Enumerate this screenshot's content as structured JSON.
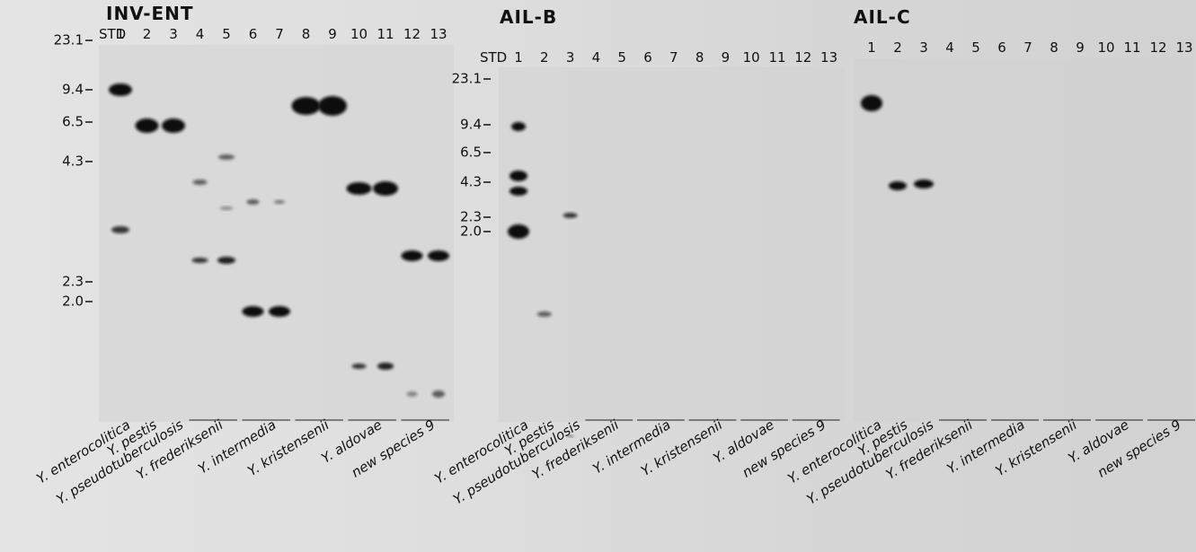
{
  "panels": [
    {
      "title": "INV-ENT",
      "std_label": "STD",
      "lanes": [
        "1",
        "2",
        "3",
        "4",
        "5",
        "6",
        "7",
        "8",
        "9",
        "10",
        "11",
        "12",
        "13"
      ],
      "size_markers": [
        "23.1",
        "9.4",
        "6.5",
        "4.3",
        "2.3",
        "2.0"
      ],
      "species": [
        "Y. enterocolitica",
        "Y. pestis",
        "Y. pseudotuberculosis",
        "Y. frederiksenii",
        "Y. intermedia",
        "Y. kristensenii",
        "Y. aldovae",
        "new species 9"
      ]
    },
    {
      "title": "AIL-B",
      "std_label": "STD",
      "lanes": [
        "1",
        "2",
        "3",
        "4",
        "5",
        "6",
        "7",
        "8",
        "9",
        "10",
        "11",
        "12",
        "13"
      ],
      "size_markers": [
        "23.1",
        "9.4",
        "6.5",
        "4.3",
        "2.3",
        "2.0"
      ],
      "species": [
        "Y. enterocolitica",
        "Y. pestis",
        "Y. pseudotuberculosis",
        "Y. frederiksenii",
        "Y. intermedia",
        "Y. kristensenii",
        "Y. aldovae",
        "new species 9"
      ]
    },
    {
      "title": "AIL-C",
      "lanes": [
        "1",
        "2",
        "3",
        "4",
        "5",
        "6",
        "7",
        "8",
        "9",
        "10",
        "11",
        "12",
        "13"
      ],
      "species": [
        "Y. enterocolitica",
        "Y. pestis",
        "Y. pseudotuberculosis",
        "Y. frederiksenii",
        "Y. intermedia",
        "Y. kristensenii",
        "Y. aldovae",
        "new species 9"
      ]
    }
  ]
}
